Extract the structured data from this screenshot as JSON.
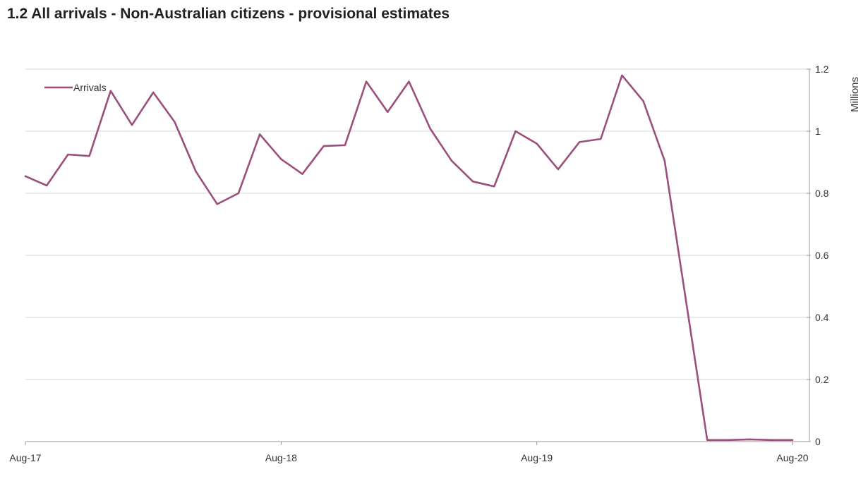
{
  "title": "1.2 All arrivals - Non-Australian citizens - provisional estimates",
  "chart_data": {
    "type": "line",
    "title": "1.2 All arrivals - Non-Australian citizens - provisional estimates",
    "ylabel": "Millions",
    "xlabel": "",
    "ylim": [
      0,
      1.2
    ],
    "yticks": [
      "0",
      "0.2",
      "0.4",
      "0.6",
      "0.8",
      "1",
      "1.2"
    ],
    "xticks": [
      "Aug-17",
      "Aug-18",
      "Aug-19",
      "Aug-20"
    ],
    "grid": "horizontal",
    "legend_position": "top-left",
    "x": [
      "Aug-17",
      "Sep-17",
      "Oct-17",
      "Nov-17",
      "Dec-17",
      "Jan-18",
      "Feb-18",
      "Mar-18",
      "Apr-18",
      "May-18",
      "Jun-18",
      "Jul-18",
      "Aug-18",
      "Sep-18",
      "Oct-18",
      "Nov-18",
      "Dec-18",
      "Jan-19",
      "Feb-19",
      "Mar-19",
      "Apr-19",
      "May-19",
      "Jun-19",
      "Jul-19",
      "Aug-19",
      "Sep-19",
      "Oct-19",
      "Nov-19",
      "Dec-19",
      "Jan-20",
      "Feb-20",
      "Mar-20",
      "Apr-20",
      "May-20",
      "Jun-20",
      "Jul-20",
      "Aug-20"
    ],
    "series": [
      {
        "name": "Arrivals",
        "color": "#9b4f7c",
        "values": [
          0.855,
          0.825,
          0.925,
          0.92,
          1.13,
          1.02,
          1.125,
          1.03,
          0.87,
          0.765,
          0.8,
          0.99,
          0.91,
          0.862,
          0.952,
          0.955,
          1.16,
          1.062,
          1.16,
          1.008,
          0.905,
          0.838,
          0.822,
          1.0,
          0.96,
          0.877,
          0.965,
          0.975,
          1.18,
          1.097,
          0.905,
          0.455,
          0.005,
          0.005,
          0.007,
          0.005,
          0.005
        ]
      }
    ]
  }
}
